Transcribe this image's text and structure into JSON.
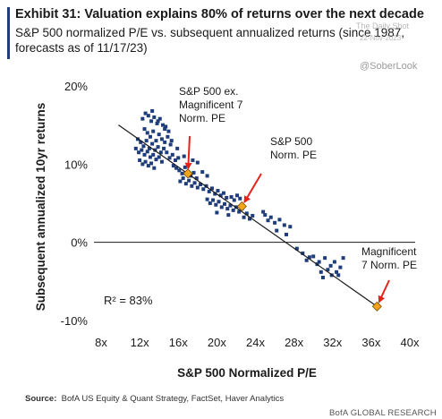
{
  "header": {
    "title": "Exhibit 31: Valuation explains 80% of returns over the next decade",
    "subtitle": "S&P 500 normalized P/E vs. subsequent annualized returns (since 1987, forecasts as of 11/17/23)",
    "watermark": "The Daily Shot",
    "watermark_date": "22-Nov-2023",
    "handle": "@SoberLook"
  },
  "footer": {
    "source_label": "Source:",
    "source_text": "BofA US Equity & Quant Strategy, FactSet, Haver Analytics",
    "brand": "BofA GLOBAL RESEARCH"
  },
  "chart_data": {
    "type": "scatter",
    "xlabel": "S&P 500 Normalized P/E",
    "ylabel": "Subsequent annualized 10yr returns",
    "xlim": [
      8,
      40
    ],
    "ylim": [
      -10,
      20
    ],
    "x_ticks": [
      "8x",
      "12x",
      "16x",
      "20x",
      "24x",
      "28x",
      "32x",
      "36x",
      "40x"
    ],
    "y_ticks": [
      "20%",
      "10%",
      "0%",
      "-10%"
    ],
    "grid": false,
    "r_squared_label": "R² = 83%",
    "series": [
      {
        "points": [
          [
            12.3,
            15.8
          ],
          [
            12.6,
            16.5
          ],
          [
            12.9,
            16.2
          ],
          [
            13.2,
            15.5
          ],
          [
            13.5,
            16.0
          ],
          [
            13.8,
            15.2
          ],
          [
            14.1,
            15.8
          ],
          [
            14.4,
            15.0
          ],
          [
            14.7,
            14.8
          ],
          [
            15.0,
            14.2
          ],
          [
            12.5,
            14.5
          ],
          [
            12.8,
            14.0
          ],
          [
            13.1,
            13.5
          ],
          [
            13.4,
            14.2
          ],
          [
            13.7,
            13.0
          ],
          [
            14.0,
            13.8
          ],
          [
            14.3,
            13.2
          ],
          [
            14.6,
            12.8
          ],
          [
            14.9,
            13.5
          ],
          [
            15.2,
            12.5
          ],
          [
            11.8,
            13.2
          ],
          [
            12.1,
            12.8
          ],
          [
            12.4,
            12.3
          ],
          [
            12.7,
            13.0
          ],
          [
            13.0,
            12.0
          ],
          [
            13.3,
            12.6
          ],
          [
            13.6,
            11.8
          ],
          [
            13.9,
            12.2
          ],
          [
            14.2,
            11.5
          ],
          [
            14.5,
            12.0
          ],
          [
            11.6,
            12.0
          ],
          [
            11.9,
            11.5
          ],
          [
            12.2,
            11.8
          ],
          [
            12.5,
            11.2
          ],
          [
            12.8,
            11.6
          ],
          [
            13.1,
            10.9
          ],
          [
            13.4,
            11.2
          ],
          [
            13.7,
            10.6
          ],
          [
            14.0,
            10.9
          ],
          [
            14.3,
            10.3
          ],
          [
            12.0,
            10.5
          ],
          [
            12.3,
            10.0
          ],
          [
            12.6,
            10.3
          ],
          [
            12.9,
            9.8
          ],
          [
            13.2,
            10.1
          ],
          [
            13.5,
            9.5
          ],
          [
            14.8,
            11.5
          ],
          [
            15.1,
            10.8
          ],
          [
            15.4,
            11.2
          ],
          [
            15.7,
            10.5
          ],
          [
            16.0,
            10.8
          ],
          [
            15.5,
            9.8
          ],
          [
            15.8,
            9.5
          ],
          [
            16.1,
            9.2
          ],
          [
            16.4,
            8.8
          ],
          [
            16.7,
            9.6
          ],
          [
            17.0,
            9.0
          ],
          [
            17.3,
            8.5
          ],
          [
            17.6,
            8.9
          ],
          [
            17.9,
            8.2
          ],
          [
            16.2,
            7.8
          ],
          [
            16.5,
            8.2
          ],
          [
            16.8,
            7.5
          ],
          [
            17.1,
            7.9
          ],
          [
            17.4,
            7.2
          ],
          [
            17.7,
            7.6
          ],
          [
            18.0,
            7.0
          ],
          [
            18.3,
            7.4
          ],
          [
            18.6,
            6.8
          ],
          [
            18.9,
            7.2
          ],
          [
            19.2,
            6.5
          ],
          [
            19.5,
            6.9
          ],
          [
            19.8,
            6.2
          ],
          [
            20.1,
            6.6
          ],
          [
            20.4,
            6.0
          ],
          [
            20.7,
            6.3
          ],
          [
            21.0,
            5.7
          ],
          [
            19.0,
            5.5
          ],
          [
            19.3,
            5.0
          ],
          [
            19.6,
            5.4
          ],
          [
            19.9,
            4.8
          ],
          [
            20.2,
            5.2
          ],
          [
            20.5,
            4.5
          ],
          [
            20.8,
            4.9
          ],
          [
            21.1,
            4.3
          ],
          [
            21.4,
            4.7
          ],
          [
            21.7,
            4.1
          ],
          [
            22.0,
            4.5
          ],
          [
            22.3,
            3.9
          ],
          [
            22.6,
            4.3
          ],
          [
            21.5,
            5.8
          ],
          [
            21.8,
            5.4
          ],
          [
            22.1,
            6.0
          ],
          [
            22.4,
            5.6
          ],
          [
            21.2,
            3.5
          ],
          [
            22.8,
            3.2
          ],
          [
            23.1,
            3.7
          ],
          [
            23.4,
            3.0
          ],
          [
            23.7,
            3.4
          ],
          [
            20.0,
            3.8
          ],
          [
            18.5,
            9.0
          ],
          [
            19.0,
            8.5
          ],
          [
            18.0,
            10.2
          ],
          [
            17.5,
            10.5
          ],
          [
            16.6,
            11.0
          ],
          [
            15.9,
            12.0
          ],
          [
            15.3,
            13.0
          ],
          [
            14.6,
            14.5
          ],
          [
            13.9,
            15.5
          ],
          [
            13.3,
            16.8
          ],
          [
            25.0,
            3.5
          ],
          [
            25.3,
            2.8
          ],
          [
            24.8,
            3.9
          ],
          [
            25.6,
            3.2
          ],
          [
            26.0,
            2.5
          ],
          [
            26.5,
            2.9
          ],
          [
            27.0,
            2.2
          ],
          [
            26.2,
            1.5
          ],
          [
            27.2,
            1.0
          ],
          [
            27.6,
            2.0
          ],
          [
            28.3,
            -0.8
          ],
          [
            28.9,
            -1.4
          ],
          [
            29.3,
            -2.3
          ],
          [
            30.0,
            -1.8
          ],
          [
            30.6,
            -2.5
          ],
          [
            31.2,
            -2.0
          ],
          [
            31.8,
            -3.0
          ],
          [
            32.2,
            -2.5
          ],
          [
            32.8,
            -3.2
          ],
          [
            33.1,
            -2.0
          ],
          [
            32.4,
            -3.8
          ],
          [
            31.9,
            -4.2
          ],
          [
            31.5,
            -3.5
          ],
          [
            30.8,
            -3.8
          ],
          [
            31.0,
            -4.5
          ],
          [
            32.6,
            -4.2
          ],
          [
            30.4,
            -2.8
          ],
          [
            29.6,
            -1.9
          ]
        ]
      }
    ],
    "fit_line": {
      "from": [
        9.8,
        15.0
      ],
      "to": [
        36.6,
        -8.2
      ]
    },
    "highlights": [
      {
        "label": "S&P 500 ex. Magnificent 7 Norm. PE",
        "x": 17.0,
        "y": 8.8
      },
      {
        "label": "S&P 500 Norm. PE",
        "x": 22.6,
        "y": 4.6
      },
      {
        "label": "Magnificent 7 Norm. PE",
        "x": 36.6,
        "y": -8.2
      }
    ],
    "colors": {
      "points": "#1f3d7a",
      "highlight": "#f2a51c",
      "arrow": "#e5231b",
      "line": "#1a1a1a"
    }
  }
}
